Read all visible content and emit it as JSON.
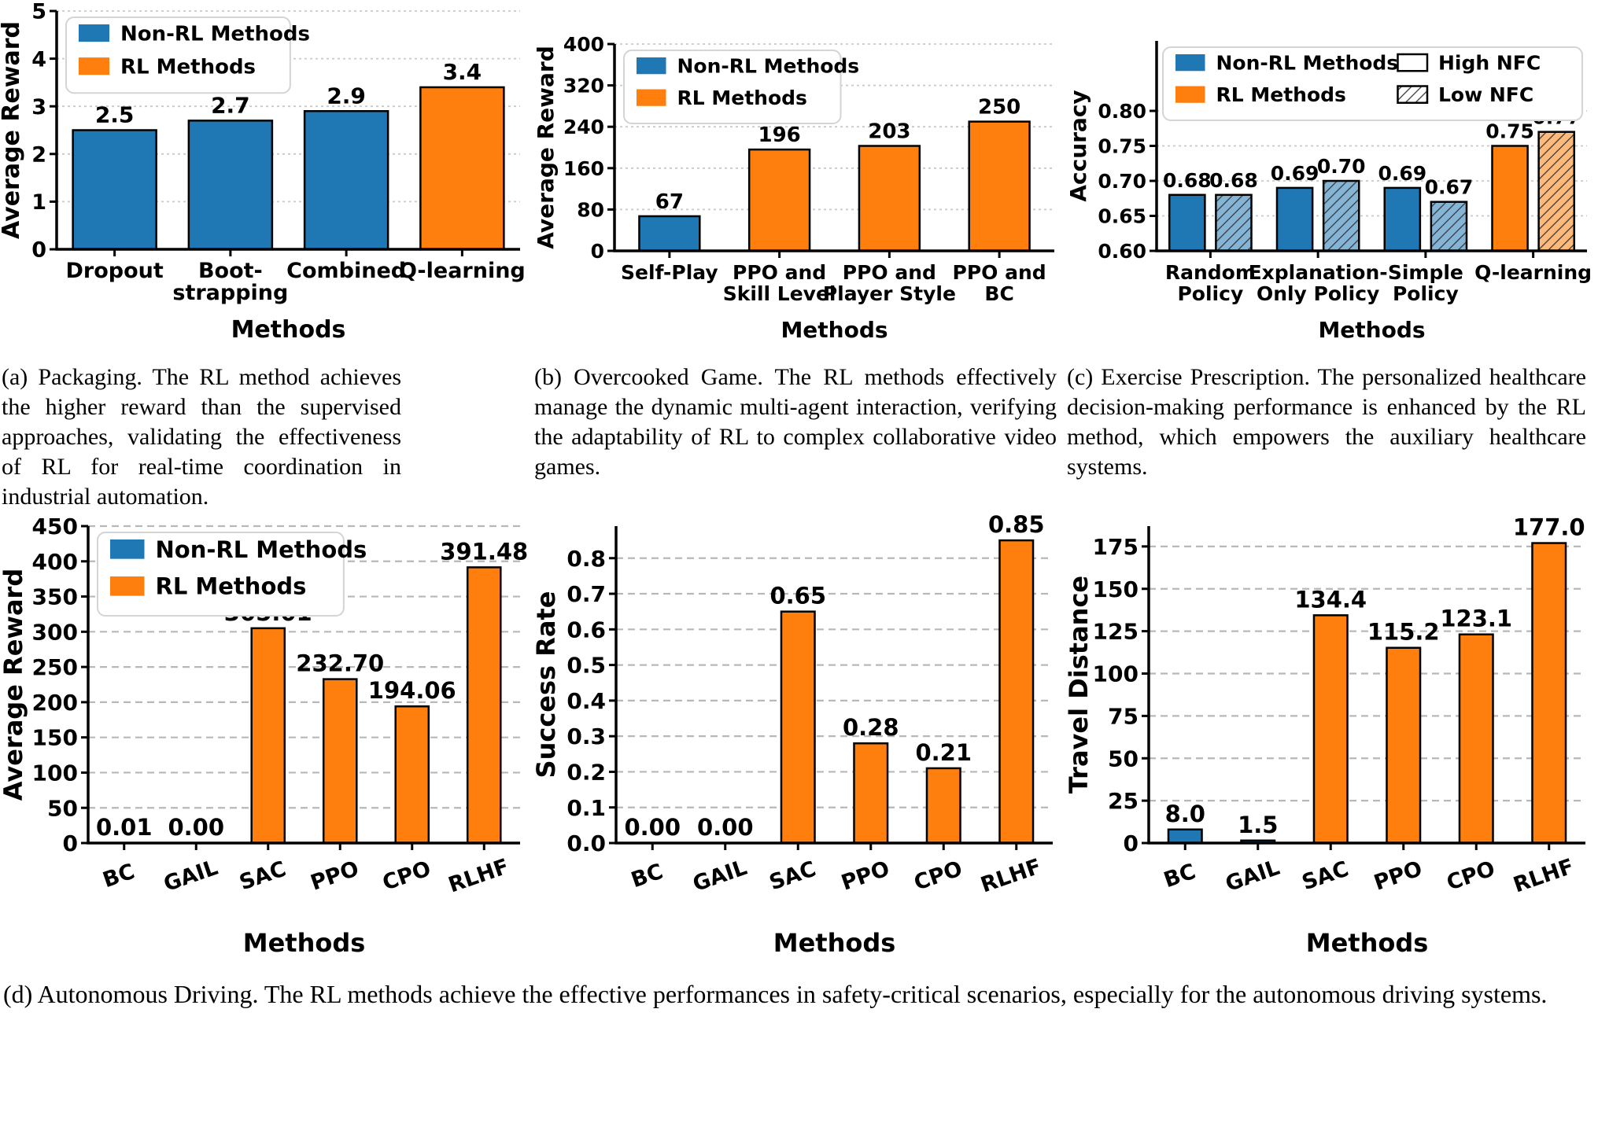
{
  "colors": {
    "non_rl": "#1f77b4",
    "rl": "#ff7f0e",
    "hatch_line": "#3a3a3a",
    "grid_top": "#c9c9c9",
    "grid_bottom": "#b8b8b8",
    "legend_border": "#d4d4d4"
  },
  "captions": {
    "a": "(a) Packaging. The RL method achieves the higher reward than the supervised approaches, validating the effectiveness of RL for real-time coordination in industrial automation.",
    "b": "(b) Overcooked Game. The RL methods effectively manage the dynamic multi-agent interaction, verifying the adaptability of RL to complex collaborative video games.",
    "c": "(c) Exercise Prescription. The personalized healthcare decision-making performance is enhanced by the RL method, which empowers the auxiliary healthcare systems.",
    "d": "(d) Autonomous Driving. The RL methods achieve the effective performances in safety-critical scenarios, especially for the autonomous driving systems."
  },
  "chart_data": [
    {
      "id": "packaging-average-reward",
      "type": "bar",
      "ylabel": "Average Reward",
      "xlabel": "Methods",
      "ylim": [
        0,
        5
      ],
      "yticks": [
        {
          "v": 0,
          "t": "0"
        },
        {
          "v": 1,
          "t": "1"
        },
        {
          "v": 2,
          "t": "2"
        },
        {
          "v": 3,
          "t": "3"
        },
        {
          "v": 4,
          "t": "4"
        },
        {
          "v": 5,
          "t": "5"
        }
      ],
      "legend": {
        "cols": 1,
        "items": [
          {
            "label": "Non-RL Methods",
            "swatch": "non_rl"
          },
          {
            "label": "RL Methods",
            "swatch": "rl"
          }
        ]
      },
      "groups": [
        {
          "category": [
            "Dropout"
          ],
          "bars": [
            {
              "value": 2.5,
              "label": "2.5",
              "color": "non_rl",
              "hatch": false
            }
          ]
        },
        {
          "category": [
            "Boot-",
            "strapping"
          ],
          "bars": [
            {
              "value": 2.7,
              "label": "2.7",
              "color": "non_rl",
              "hatch": false
            }
          ]
        },
        {
          "category": [
            "Combined"
          ],
          "bars": [
            {
              "value": 2.9,
              "label": "2.9",
              "color": "non_rl",
              "hatch": false
            }
          ]
        },
        {
          "category": [
            "Q-learning"
          ],
          "bars": [
            {
              "value": 3.4,
              "label": "3.4",
              "color": "rl",
              "hatch": false
            }
          ]
        }
      ]
    },
    {
      "id": "overcooked-average-reward",
      "type": "bar",
      "ylabel": "Average Reward",
      "xlabel": "Methods",
      "ylim": [
        0,
        400
      ],
      "yticks": [
        {
          "v": 0,
          "t": "0"
        },
        {
          "v": 80,
          "t": "80"
        },
        {
          "v": 160,
          "t": "160"
        },
        {
          "v": 240,
          "t": "240"
        },
        {
          "v": 320,
          "t": "320"
        },
        {
          "v": 400,
          "t": "400"
        }
      ],
      "legend": {
        "cols": 1,
        "items": [
          {
            "label": "Non-RL Methods",
            "swatch": "non_rl"
          },
          {
            "label": "RL Methods",
            "swatch": "rl"
          }
        ]
      },
      "groups": [
        {
          "category": [
            "Self-Play"
          ],
          "bars": [
            {
              "value": 67,
              "label": "67",
              "color": "non_rl",
              "hatch": false
            }
          ]
        },
        {
          "category": [
            "PPO and",
            "Skill Level"
          ],
          "bars": [
            {
              "value": 196,
              "label": "196",
              "color": "rl",
              "hatch": false
            }
          ]
        },
        {
          "category": [
            "PPO and",
            "Player Style"
          ],
          "bars": [
            {
              "value": 203,
              "label": "203",
              "color": "rl",
              "hatch": false
            }
          ]
        },
        {
          "category": [
            "PPO and",
            "BC"
          ],
          "bars": [
            {
              "value": 250,
              "label": "250",
              "color": "rl",
              "hatch": false
            }
          ]
        }
      ]
    },
    {
      "id": "exercise-prescription-accuracy",
      "type": "bar",
      "ylabel": "Accuracy",
      "xlabel": "Methods",
      "ylim": [
        0.6,
        0.9
      ],
      "yticks": [
        {
          "v": 0.6,
          "t": "0.60"
        },
        {
          "v": 0.65,
          "t": "0.65"
        },
        {
          "v": 0.7,
          "t": "0.70"
        },
        {
          "v": 0.75,
          "t": "0.75"
        },
        {
          "v": 0.8,
          "t": "0.80"
        }
      ],
      "legend": {
        "cols": 2,
        "items": [
          {
            "label": "Non-RL Methods",
            "swatch": "non_rl"
          },
          {
            "label": "RL Methods",
            "swatch": "rl"
          },
          {
            "label": "High NFC",
            "swatch": "high_nfc"
          },
          {
            "label": "Low NFC",
            "swatch": "low_nfc"
          }
        ]
      },
      "series": [
        "High NFC",
        "Low NFC"
      ],
      "groups": [
        {
          "category": [
            "Random",
            "Policy"
          ],
          "bars": [
            {
              "value": 0.68,
              "label": "0.68",
              "color": "non_rl",
              "hatch": false
            },
            {
              "value": 0.68,
              "label": "0.68",
              "color": "non_rl",
              "hatch": true
            }
          ]
        },
        {
          "category": [
            "Explanation-",
            "Only Policy"
          ],
          "bars": [
            {
              "value": 0.69,
              "label": "0.69",
              "color": "non_rl",
              "hatch": false
            },
            {
              "value": 0.7,
              "label": "0.70",
              "color": "non_rl",
              "hatch": true
            }
          ]
        },
        {
          "category": [
            "Simple",
            "Policy"
          ],
          "bars": [
            {
              "value": 0.69,
              "label": "0.69",
              "color": "non_rl",
              "hatch": false
            },
            {
              "value": 0.67,
              "label": "0.67",
              "color": "non_rl",
              "hatch": true
            }
          ]
        },
        {
          "category": [
            "Q-learning"
          ],
          "bars": [
            {
              "value": 0.75,
              "label": "0.75",
              "color": "rl",
              "hatch": false
            },
            {
              "value": 0.77,
              "label": "0.77",
              "color": "rl",
              "hatch": true
            }
          ]
        }
      ]
    },
    {
      "id": "driving-average-reward",
      "type": "bar",
      "ylabel": "Average Reward",
      "xlabel": "Methods",
      "ylim": [
        0,
        450
      ],
      "yticks": [
        {
          "v": 0,
          "t": "0"
        },
        {
          "v": 50,
          "t": "50"
        },
        {
          "v": 100,
          "t": "100"
        },
        {
          "v": 150,
          "t": "150"
        },
        {
          "v": 200,
          "t": "200"
        },
        {
          "v": 250,
          "t": "250"
        },
        {
          "v": 300,
          "t": "300"
        },
        {
          "v": 350,
          "t": "350"
        },
        {
          "v": 400,
          "t": "400"
        },
        {
          "v": 450,
          "t": "450"
        }
      ],
      "legend": {
        "cols": 1,
        "items": [
          {
            "label": "Non-RL Methods",
            "swatch": "non_rl"
          },
          {
            "label": "RL Methods",
            "swatch": "rl"
          }
        ]
      },
      "groups": [
        {
          "category": [
            "BC"
          ],
          "bars": [
            {
              "value": 0.01,
              "label": "0.01",
              "color": "non_rl",
              "hatch": false
            }
          ]
        },
        {
          "category": [
            "GAIL"
          ],
          "bars": [
            {
              "value": 0.0,
              "label": "0.00",
              "color": "non_rl",
              "hatch": false
            }
          ]
        },
        {
          "category": [
            "SAC"
          ],
          "bars": [
            {
              "value": 305.01,
              "label": "305.01",
              "color": "rl",
              "hatch": false
            }
          ]
        },
        {
          "category": [
            "PPO"
          ],
          "bars": [
            {
              "value": 232.7,
              "label": "232.70",
              "color": "rl",
              "hatch": false
            }
          ]
        },
        {
          "category": [
            "CPO"
          ],
          "bars": [
            {
              "value": 194.06,
              "label": "194.06",
              "color": "rl",
              "hatch": false
            }
          ]
        },
        {
          "category": [
            "RLHF"
          ],
          "bars": [
            {
              "value": 391.48,
              "label": "391.48",
              "color": "rl",
              "hatch": false
            }
          ]
        }
      ]
    },
    {
      "id": "driving-success-rate",
      "type": "bar",
      "ylabel": "Success Rate",
      "xlabel": "Methods",
      "ylim": [
        0,
        0.89
      ],
      "yticks": [
        {
          "v": 0.0,
          "t": "0.0"
        },
        {
          "v": 0.1,
          "t": "0.1"
        },
        {
          "v": 0.2,
          "t": "0.2"
        },
        {
          "v": 0.3,
          "t": "0.3"
        },
        {
          "v": 0.4,
          "t": "0.4"
        },
        {
          "v": 0.5,
          "t": "0.5"
        },
        {
          "v": 0.6,
          "t": "0.6"
        },
        {
          "v": 0.7,
          "t": "0.7"
        },
        {
          "v": 0.8,
          "t": "0.8"
        }
      ],
      "legend": null,
      "groups": [
        {
          "category": [
            "BC"
          ],
          "bars": [
            {
              "value": 0.0,
              "label": "0.00",
              "color": "non_rl",
              "hatch": false
            }
          ]
        },
        {
          "category": [
            "GAIL"
          ],
          "bars": [
            {
              "value": 0.0,
              "label": "0.00",
              "color": "non_rl",
              "hatch": false
            }
          ]
        },
        {
          "category": [
            "SAC"
          ],
          "bars": [
            {
              "value": 0.65,
              "label": "0.65",
              "color": "rl",
              "hatch": false
            }
          ]
        },
        {
          "category": [
            "PPO"
          ],
          "bars": [
            {
              "value": 0.28,
              "label": "0.28",
              "color": "rl",
              "hatch": false
            }
          ]
        },
        {
          "category": [
            "CPO"
          ],
          "bars": [
            {
              "value": 0.21,
              "label": "0.21",
              "color": "rl",
              "hatch": false
            }
          ]
        },
        {
          "category": [
            "RLHF"
          ],
          "bars": [
            {
              "value": 0.85,
              "label": "0.85",
              "color": "rl",
              "hatch": false
            }
          ]
        }
      ]
    },
    {
      "id": "driving-travel-distance",
      "type": "bar",
      "ylabel": "Travel Distance",
      "xlabel": "Methods",
      "ylim": [
        0,
        187
      ],
      "yticks": [
        {
          "v": 0,
          "t": "0"
        },
        {
          "v": 25,
          "t": "25"
        },
        {
          "v": 50,
          "t": "50"
        },
        {
          "v": 75,
          "t": "75"
        },
        {
          "v": 100,
          "t": "100"
        },
        {
          "v": 125,
          "t": "125"
        },
        {
          "v": 150,
          "t": "150"
        },
        {
          "v": 175,
          "t": "175"
        }
      ],
      "legend": null,
      "groups": [
        {
          "category": [
            "BC"
          ],
          "bars": [
            {
              "value": 8.0,
              "label": "8.0",
              "color": "non_rl",
              "hatch": false
            }
          ]
        },
        {
          "category": [
            "GAIL"
          ],
          "bars": [
            {
              "value": 1.5,
              "label": "1.5",
              "color": "non_rl",
              "hatch": false
            }
          ]
        },
        {
          "category": [
            "SAC"
          ],
          "bars": [
            {
              "value": 134.4,
              "label": "134.4",
              "color": "rl",
              "hatch": false
            }
          ]
        },
        {
          "category": [
            "PPO"
          ],
          "bars": [
            {
              "value": 115.2,
              "label": "115.2",
              "color": "rl",
              "hatch": false
            }
          ]
        },
        {
          "category": [
            "CPO"
          ],
          "bars": [
            {
              "value": 123.1,
              "label": "123.1",
              "color": "rl",
              "hatch": false
            }
          ]
        },
        {
          "category": [
            "RLHF"
          ],
          "bars": [
            {
              "value": 177.0,
              "label": "177.0",
              "color": "rl",
              "hatch": false
            }
          ]
        }
      ]
    }
  ]
}
